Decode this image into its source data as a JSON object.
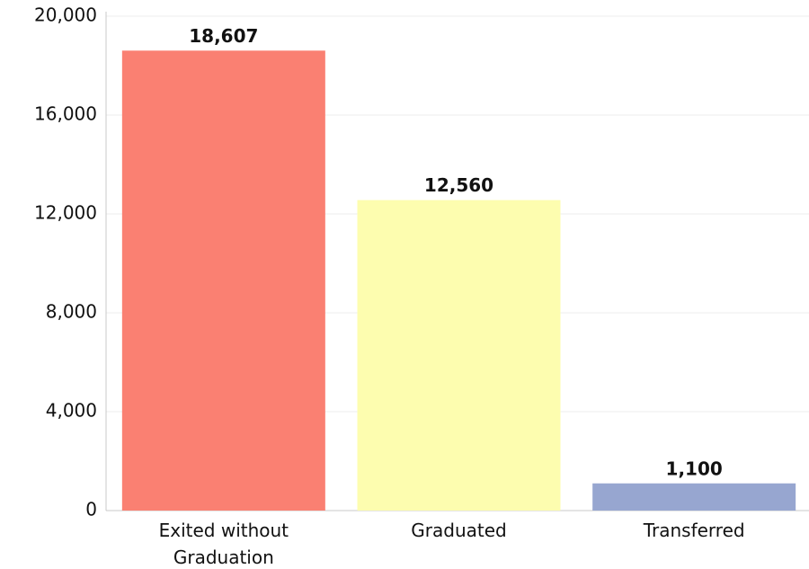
{
  "chart_data": {
    "type": "bar",
    "categories": [
      "Exited without Graduation",
      "Graduated",
      "Transferred"
    ],
    "values": [
      18607,
      12560,
      1100
    ],
    "value_labels": [
      "18,607",
      "12,560",
      "1,100"
    ],
    "colors": [
      "#fa8072",
      "#fdfdaf",
      "#97a6d0"
    ],
    "ylim": [
      0,
      20000
    ],
    "yticks": [
      0,
      {
        "value": 4000,
        "label": "4,000"
      },
      {
        "value": 8000,
        "label": "8,000"
      },
      {
        "value": 12000,
        "label": "12,000"
      },
      {
        "value": 16000,
        "label": "16,000"
      },
      {
        "value": 20000,
        "label": "20,000"
      }
    ],
    "grid": true
  }
}
